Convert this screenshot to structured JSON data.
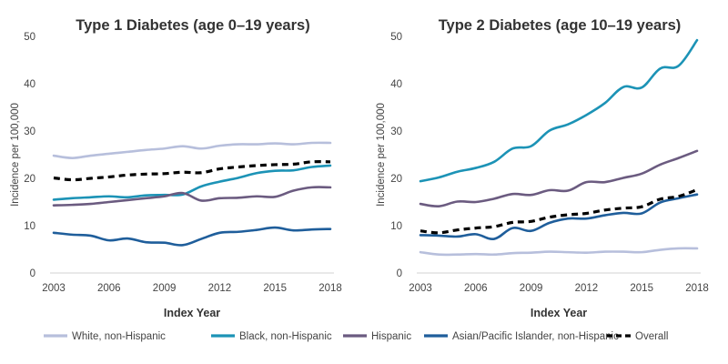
{
  "chart_data": [
    {
      "type": "line",
      "title": "Type 1 Diabetes (age 0–19 years)",
      "xlabel": "Index Year",
      "ylabel": "Incidence per 100,000",
      "xlim": [
        2003,
        2018
      ],
      "ylim": [
        0,
        50
      ],
      "xticks": [
        "2003",
        "2006",
        "2009",
        "2012",
        "2015",
        "2018"
      ],
      "yticks": [
        "0",
        "10",
        "20",
        "30",
        "40",
        "50"
      ],
      "grid": false,
      "x": [
        2003,
        2004,
        2005,
        2006,
        2007,
        2008,
        2009,
        2010,
        2011,
        2012,
        2013,
        2014,
        2015,
        2016,
        2017,
        2018
      ],
      "series": [
        {
          "name": "White, non-Hispanic",
          "color": "#b7bfdc",
          "dashed": false,
          "values": [
            24.8,
            24.3,
            24.8,
            25.2,
            25.6,
            26.0,
            26.3,
            26.8,
            26.3,
            26.9,
            27.2,
            27.2,
            27.4,
            27.2,
            27.5,
            27.5
          ]
        },
        {
          "name": "Black, non-Hispanic",
          "color": "#1c93b6",
          "dashed": false,
          "values": [
            15.5,
            15.8,
            16.0,
            16.2,
            16.0,
            16.4,
            16.5,
            16.6,
            18.3,
            19.3,
            20.1,
            21.1,
            21.6,
            21.7,
            22.4,
            22.7
          ]
        },
        {
          "name": "Hispanic",
          "color": "#6b5b80",
          "dashed": false,
          "values": [
            14.3,
            14.4,
            14.6,
            15.0,
            15.4,
            15.8,
            16.2,
            16.9,
            15.3,
            15.8,
            15.9,
            16.2,
            16.1,
            17.4,
            18.1,
            18.1
          ]
        },
        {
          "name": "Asian/Pacific Islander, non-Hispanic",
          "color": "#1f5e9b",
          "dashed": false,
          "values": [
            8.5,
            8.1,
            7.9,
            6.9,
            7.3,
            6.5,
            6.4,
            5.9,
            7.2,
            8.5,
            8.7,
            9.1,
            9.6,
            9.0,
            9.2,
            9.3
          ]
        },
        {
          "name": "Overall",
          "color": "#000000",
          "dashed": true,
          "values": [
            20.1,
            19.7,
            20.0,
            20.3,
            20.7,
            20.9,
            21.0,
            21.3,
            21.2,
            22.0,
            22.4,
            22.7,
            22.9,
            23.0,
            23.5,
            23.5
          ]
        }
      ]
    },
    {
      "type": "line",
      "title": "Type 2 Diabetes (age 10–19 years)",
      "xlabel": "Index Year",
      "ylabel": "Incidence per 100,000",
      "xlim": [
        2003,
        2018
      ],
      "ylim": [
        0,
        50
      ],
      "xticks": [
        "2003",
        "2006",
        "2009",
        "2012",
        "2015",
        "2018"
      ],
      "yticks": [
        "0",
        "10",
        "20",
        "30",
        "40",
        "50"
      ],
      "grid": false,
      "x": [
        2003,
        2004,
        2005,
        2006,
        2007,
        2008,
        2009,
        2010,
        2011,
        2012,
        2013,
        2014,
        2015,
        2016,
        2017,
        2018
      ],
      "series": [
        {
          "name": "White, non-Hispanic",
          "color": "#b7bfdc",
          "dashed": false,
          "values": [
            4.4,
            3.9,
            3.9,
            4.0,
            3.9,
            4.2,
            4.3,
            4.5,
            4.4,
            4.3,
            4.5,
            4.5,
            4.4,
            4.9,
            5.2,
            5.2
          ]
        },
        {
          "name": "Black, non-Hispanic",
          "color": "#1c93b6",
          "dashed": false,
          "values": [
            19.4,
            20.2,
            21.4,
            22.2,
            23.5,
            26.3,
            26.8,
            30.1,
            31.4,
            33.4,
            35.9,
            39.3,
            39.2,
            43.2,
            43.8,
            49.2
          ]
        },
        {
          "name": "Hispanic",
          "color": "#6b5b80",
          "dashed": false,
          "values": [
            14.6,
            14.1,
            15.1,
            15.0,
            15.7,
            16.7,
            16.5,
            17.5,
            17.4,
            19.2,
            19.2,
            20.1,
            21.0,
            22.9,
            24.3,
            25.8
          ]
        },
        {
          "name": "Asian/Pacific Islander, non-Hispanic",
          "color": "#1f5e9b",
          "dashed": false,
          "values": [
            8.0,
            7.9,
            7.7,
            8.2,
            7.2,
            9.5,
            8.9,
            10.6,
            11.5,
            11.5,
            12.2,
            12.7,
            12.6,
            14.9,
            15.8,
            16.6
          ]
        },
        {
          "name": "Overall",
          "color": "#000000",
          "dashed": true,
          "values": [
            8.9,
            8.5,
            9.1,
            9.5,
            9.8,
            10.7,
            10.9,
            11.8,
            12.3,
            12.6,
            13.3,
            13.7,
            14.0,
            15.6,
            16.2,
            17.6
          ]
        }
      ]
    }
  ],
  "legend": {
    "placement": "bottom",
    "items": [
      {
        "label": "White, non-Hispanic",
        "color": "#b7bfdc",
        "dashed": false
      },
      {
        "label": "Black, non-Hispanic",
        "color": "#1c93b6",
        "dashed": false
      },
      {
        "label": "Hispanic",
        "color": "#6b5b80",
        "dashed": false
      },
      {
        "label": "Asian/Pacific Islander, non-Hispanic",
        "color": "#1f5e9b",
        "dashed": false
      },
      {
        "label": "Overall",
        "color": "#000000",
        "dashed": true
      }
    ]
  }
}
